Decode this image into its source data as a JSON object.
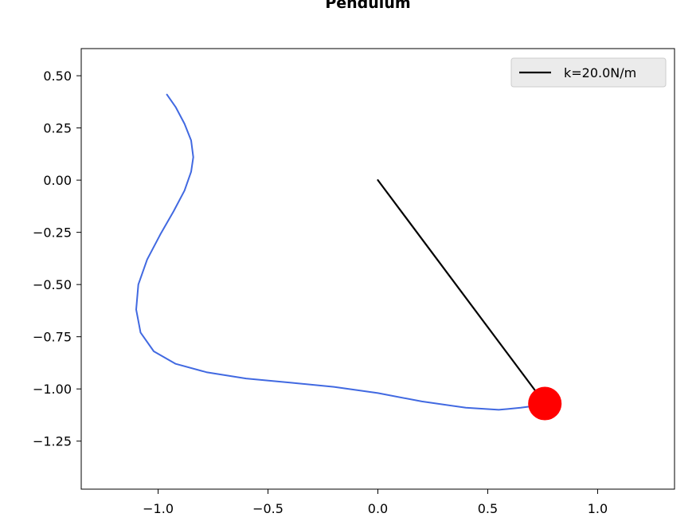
{
  "chart_data": {
    "type": "line",
    "title": "Pendulum",
    "xlabel": "",
    "ylabel": "",
    "xlim": [
      -1.35,
      1.35
    ],
    "ylim": [
      -1.48,
      0.63
    ],
    "grid": false,
    "legend_placement": "top-right",
    "x_ticks": [
      {
        "value": -1.0,
        "label": "−1.0"
      },
      {
        "value": -0.5,
        "label": "−0.5"
      },
      {
        "value": 0.0,
        "label": "0.0"
      },
      {
        "value": 0.5,
        "label": "0.5"
      },
      {
        "value": 1.0,
        "label": "1.0"
      }
    ],
    "y_ticks": [
      {
        "value": 0.5,
        "label": "0.50"
      },
      {
        "value": 0.25,
        "label": "0.25"
      },
      {
        "value": 0.0,
        "label": "0.00"
      },
      {
        "value": -0.25,
        "label": "−0.25"
      },
      {
        "value": -0.5,
        "label": "−0.50"
      },
      {
        "value": -0.75,
        "label": "−0.75"
      },
      {
        "value": -1.0,
        "label": "−1.00"
      },
      {
        "value": -1.25,
        "label": "−1.25"
      }
    ],
    "series": [
      {
        "name": "k=20.0N/m",
        "kind": "rod",
        "color": "#000000",
        "x": [
          0.0,
          0.76
        ],
        "y": [
          0.0,
          -1.07
        ]
      },
      {
        "kind": "trail",
        "color": "#4169e1",
        "x": [
          -0.96,
          -0.92,
          -0.88,
          -0.85,
          -0.84,
          -0.85,
          -0.88,
          -0.93,
          -0.99,
          -1.05,
          -1.09,
          -1.1,
          -1.08,
          -1.02,
          -0.92,
          -0.78,
          -0.6,
          -0.4,
          -0.2,
          0.0,
          0.2,
          0.4,
          0.55,
          0.65,
          0.72,
          0.76
        ],
        "y": [
          0.41,
          0.35,
          0.27,
          0.19,
          0.11,
          0.04,
          -0.05,
          -0.15,
          -0.26,
          -0.38,
          -0.5,
          -0.62,
          -0.73,
          -0.82,
          -0.88,
          -0.92,
          -0.95,
          -0.97,
          -0.99,
          -1.02,
          -1.06,
          -1.09,
          -1.1,
          -1.09,
          -1.08,
          -1.07
        ]
      }
    ],
    "bob": {
      "x": 0.76,
      "y": -1.07,
      "color": "#ff0000"
    }
  }
}
